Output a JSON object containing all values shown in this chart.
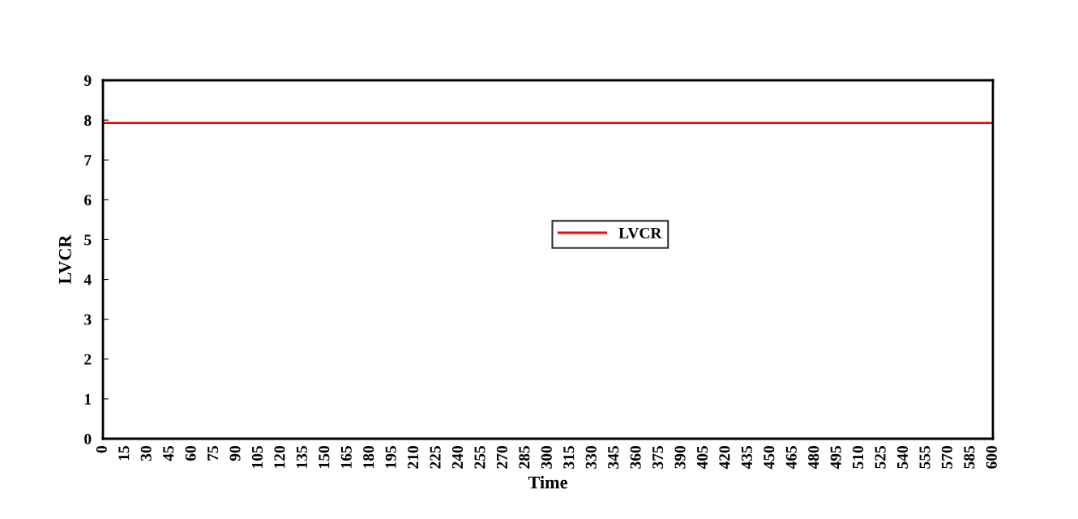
{
  "chart_data": {
    "type": "line",
    "xlabel": "Time",
    "ylabel": "LVCR",
    "x": [
      0,
      600
    ],
    "series": [
      {
        "name": "LVCR",
        "color": "#ff0000",
        "values": [
          7.93,
          7.93
        ]
      }
    ],
    "xlim": [
      0,
      600
    ],
    "xticks": [
      0,
      15,
      30,
      45,
      60,
      75,
      90,
      105,
      120,
      135,
      150,
      165,
      180,
      195,
      210,
      225,
      240,
      255,
      270,
      285,
      300,
      315,
      330,
      345,
      360,
      375,
      390,
      405,
      420,
      435,
      450,
      465,
      480,
      495,
      510,
      525,
      540,
      555,
      570,
      585,
      600
    ],
    "ylim": [
      0,
      9
    ],
    "yticks": [
      0,
      1,
      2,
      3,
      4,
      5,
      6,
      7,
      8,
      9
    ],
    "grid": false,
    "legend": "center",
    "marker": "none",
    "line_style": "solid"
  }
}
